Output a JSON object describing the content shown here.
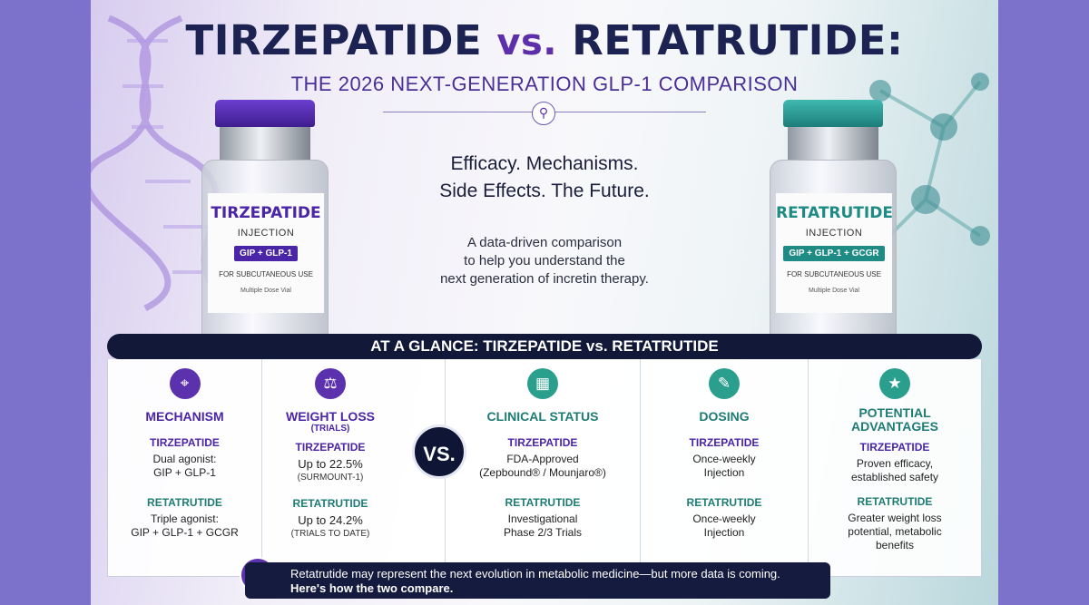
{
  "header": {
    "title_a": "TIRZEPATIDE",
    "title_vs": "vs.",
    "title_b": "RETATRUTIDE:",
    "subtitle": "THE 2026 NEXT-GENERATION GLP-1 COMPARISON",
    "divider_icon": "link-icon"
  },
  "tagline": {
    "line1": "Efficacy. Mechanisms.",
    "line2": "Side Effects. The Future."
  },
  "lede": {
    "line1": "A data-driven comparison",
    "line2": "to help you understand the",
    "line3": "next generation of incretin therapy."
  },
  "vials": {
    "left": {
      "drug": "TIRZEPATIDE",
      "injection": "INJECTION",
      "mechanism": "GIP + GLP-1",
      "use": "FOR SUBCUTANEOUS USE",
      "dose": "Multiple Dose Vial",
      "color": "#4a25a8"
    },
    "right": {
      "drug": "RETATRUTIDE",
      "injection": "INJECTION",
      "mechanism": "GIP + GLP-1 + GCGR",
      "use": "FOR SUBCUTANEOUS USE",
      "dose": "Multiple Dose Vial",
      "color": "#1e8c85"
    }
  },
  "glance": {
    "header": "AT A GLANCE: TIRZEPATIDE vs. RETATRUTIDE",
    "vs": "VS.",
    "columns": [
      {
        "icon": "target-icon",
        "head": "MECHANISM",
        "sub": "",
        "a_label": "TIRZEPATIDE",
        "a_val1": "Dual agonist:",
        "a_val2": "GIP + GLP-1",
        "a_note": "",
        "b_label": "RETATRUTIDE",
        "b_val1": "Triple agonist:",
        "b_val2": "GIP + GLP-1 + GCGR",
        "b_note": ""
      },
      {
        "icon": "scale-icon",
        "head": "WEIGHT LOSS",
        "sub": "(TRIALS)",
        "a_label": "TIRZEPATIDE",
        "a_val1": "Up to 22.5%",
        "a_val2": "",
        "a_note": "(SURMOUNT-1)",
        "b_label": "RETATRUTIDE",
        "b_val1": "Up to 24.2%",
        "b_val2": "",
        "b_note": "(TRIALS TO DATE)"
      },
      {
        "icon": "calendar-icon",
        "head": "CLINICAL STATUS",
        "sub": "",
        "a_label": "TIRZEPATIDE",
        "a_val1": "FDA-Approved",
        "a_val2": "(Zepbound® / Mounjaro®)",
        "a_note": "",
        "b_label": "RETATRUTIDE",
        "b_val1": "Investigational",
        "b_val2": "Phase 2/3 Trials",
        "b_note": ""
      },
      {
        "icon": "syringe-icon",
        "head": "DOSING",
        "sub": "",
        "a_label": "TIRZEPATIDE",
        "a_val1": "Once-weekly",
        "a_val2": "Injection",
        "a_note": "",
        "b_label": "RETATRUTIDE",
        "b_val1": "Once-weekly",
        "b_val2": "Injection",
        "b_note": ""
      },
      {
        "icon": "star-icon",
        "head": "POTENTIAL",
        "head2": "ADVANTAGES",
        "sub": "",
        "a_label": "TIRZEPATIDE",
        "a_val1": "Proven efficacy,",
        "a_val2": "established safety",
        "a_note": "",
        "b_label": "RETATRUTIDE",
        "b_val1": "Greater weight loss",
        "b_val2": "potential, metabolic",
        "b_val3": "benefits",
        "b_note": ""
      }
    ]
  },
  "footer": {
    "line1": "Retatrutide may represent the next evolution in metabolic medicine—but more data is coming.",
    "line2": "Here's how the two compare.",
    "icon": "lightbulb-icon"
  }
}
